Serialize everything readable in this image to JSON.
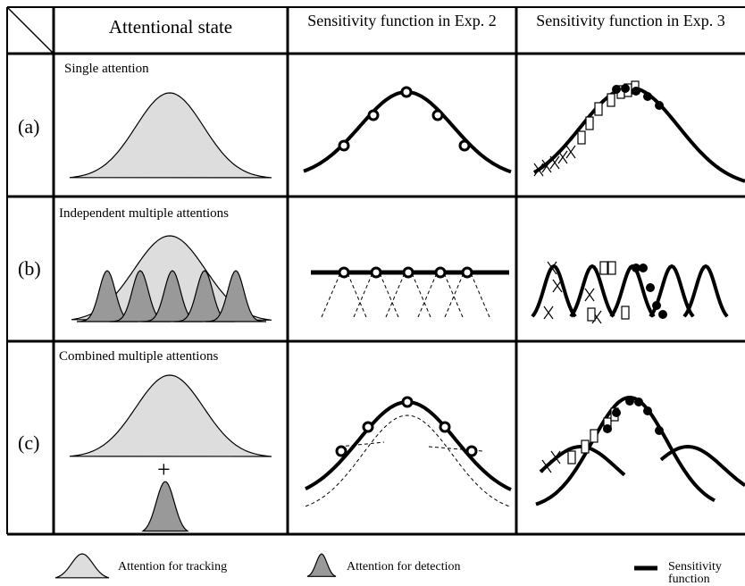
{
  "header": {
    "columns": [
      "Attentional state",
      "Sensitivity function in Exp. 2",
      "Sensitivity function in Exp. 3"
    ]
  },
  "rows": [
    {
      "label": "(a)",
      "title": "Single attention"
    },
    {
      "label": "(b)",
      "title": "Independent multiple attentions"
    },
    {
      "label": "(c)",
      "title": "Combined multiple attentions",
      "operator": "+"
    }
  ],
  "legend": [
    "Attention for tracking",
    "Attention for detection",
    "Sensitivity function"
  ]
}
